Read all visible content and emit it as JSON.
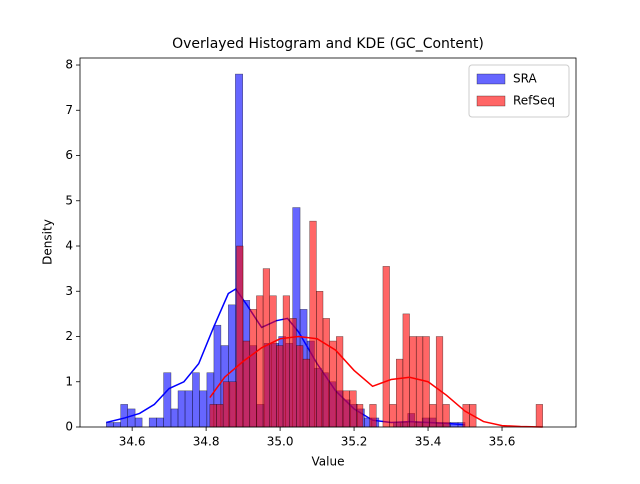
{
  "chart_data": {
    "type": "histogram",
    "title": "Overlayed Histogram and KDE (GC_Content)",
    "xlabel": "Value",
    "ylabel": "Density",
    "xlim": [
      34.459,
      35.8
    ],
    "ylim": [
      0,
      8.155
    ],
    "xticks": [
      34.6,
      34.8,
      {
        "value": 35,
        "label": "35.0"
      },
      35.2,
      35.4,
      35.6
    ],
    "yticks": [
      0,
      1,
      2,
      3,
      4,
      5,
      6,
      7,
      8
    ],
    "legend": "upper right",
    "series": [
      {
        "name": "SRA",
        "color": "#0000ff",
        "bins": [
          34.53,
          34.549,
          34.569,
          34.588,
          34.608,
          34.627,
          34.646,
          34.666,
          34.685,
          34.705,
          34.724,
          34.743,
          34.763,
          34.782,
          34.802,
          34.821,
          34.84,
          34.86,
          34.879,
          34.899,
          34.918,
          34.937,
          34.957,
          34.976,
          34.996,
          35.015,
          35.034,
          35.054,
          35.073,
          35.093,
          35.112,
          35.131,
          35.151,
          35.17,
          35.19,
          35.209,
          35.228,
          35.248,
          35.267,
          35.287,
          35.306,
          35.325,
          35.345,
          35.364,
          35.384,
          35.403,
          35.422,
          35.442,
          35.461,
          35.481,
          35.5
        ],
        "values": [
          0.1,
          0.1,
          0.5,
          0.4,
          0.2,
          0,
          0.2,
          0.2,
          1.2,
          0.4,
          0.8,
          0.8,
          1.2,
          0.8,
          1.2,
          2.25,
          1.8,
          2.7,
          7.8,
          2.8,
          1.8,
          0.5,
          1.85,
          1.85,
          2.0,
          1.85,
          4.85,
          2.6,
          1.9,
          1.3,
          1.2,
          1.0,
          0.8,
          0.6,
          0.5,
          0.4,
          0.2,
          0.2,
          0,
          0,
          0.1,
          0.1,
          0.3,
          0.1,
          0.2,
          0.2,
          0.1,
          0.1,
          0.1,
          0.1
        ],
        "kde_x": [
          34.53,
          34.58,
          34.62,
          34.66,
          34.7,
          34.74,
          34.78,
          34.82,
          34.86,
          34.88,
          34.91,
          34.95,
          34.99,
          35.02,
          35.05,
          35.1,
          35.15,
          35.2,
          35.25,
          35.3,
          35.35,
          35.4,
          35.45,
          35.5
        ],
        "kde_y": [
          0.1,
          0.2,
          0.3,
          0.5,
          0.85,
          1.0,
          1.4,
          2.2,
          2.95,
          3.05,
          2.7,
          2.2,
          2.35,
          2.4,
          2.1,
          1.4,
          0.8,
          0.4,
          0.15,
          0.1,
          0.12,
          0.1,
          0.08,
          0.05
        ]
      },
      {
        "name": "RefSeq",
        "color": "#ff0000",
        "bins": [
          34.81,
          34.828,
          34.846,
          34.864,
          34.882,
          34.9,
          34.918,
          34.936,
          34.954,
          34.972,
          34.99,
          35.008,
          35.026,
          35.044,
          35.062,
          35.08,
          35.098,
          35.116,
          35.134,
          35.152,
          35.17,
          35.188,
          35.206,
          35.224,
          35.242,
          35.26,
          35.278,
          35.296,
          35.314,
          35.332,
          35.35,
          35.368,
          35.386,
          35.404,
          35.422,
          35.44,
          35.458,
          35.476,
          35.494,
          35.512,
          35.53,
          35.548,
          35.566,
          35.584,
          35.602,
          35.62,
          35.638,
          35.656,
          35.674,
          35.692,
          35.71
        ],
        "values": [
          0.5,
          0.5,
          1.0,
          1.0,
          4.0,
          1.9,
          2.6,
          2.9,
          3.5,
          2.9,
          1.8,
          2.9,
          2.4,
          1.8,
          1.5,
          4.55,
          3.0,
          2.4,
          1.9,
          2.0,
          0.8,
          0.8,
          0.5,
          0,
          0.5,
          0,
          3.55,
          0.5,
          1.5,
          2.5,
          2.0,
          2.0,
          2.0,
          0.5,
          2.0,
          0.5,
          0,
          0,
          0.5,
          0.5,
          0,
          0,
          0,
          0,
          0,
          0,
          0,
          0,
          0,
          0.5
        ],
        "kde_x": [
          34.81,
          34.85,
          34.9,
          34.95,
          35.0,
          35.05,
          35.1,
          35.15,
          35.2,
          35.25,
          35.3,
          35.35,
          35.4,
          35.45,
          35.5,
          35.55,
          35.6,
          35.65,
          35.71
        ],
        "kde_y": [
          0.65,
          1.1,
          1.45,
          1.75,
          1.95,
          2.0,
          1.95,
          1.7,
          1.25,
          0.9,
          1.05,
          1.1,
          1.0,
          0.7,
          0.35,
          0.12,
          0.03,
          0.01,
          0
        ]
      }
    ]
  }
}
